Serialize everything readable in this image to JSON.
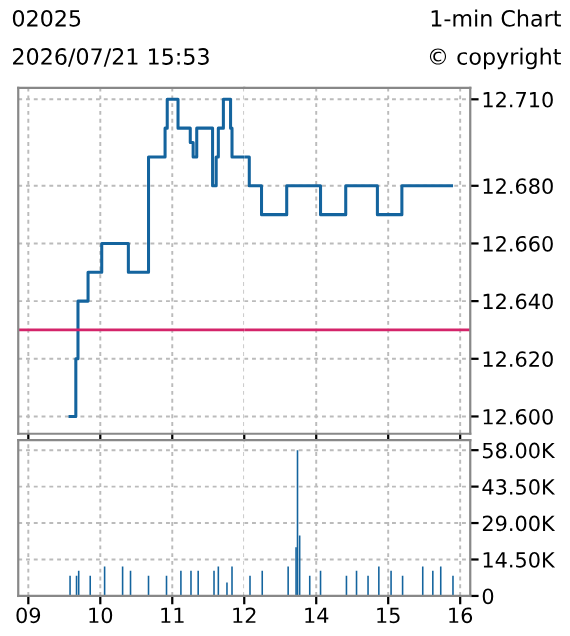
{
  "chart_data": [
    {
      "type": "step",
      "title": "02025",
      "subtitle": "2026/07/21 15:53",
      "annotations": [
        "1-min Chart",
        "© copyright"
      ],
      "x": [
        9.58,
        9.66,
        9.69,
        9.83,
        10.02,
        10.39,
        10.67,
        10.9,
        10.93,
        11.08,
        11.25,
        11.29,
        11.34,
        11.56,
        11.61,
        11.64,
        11.71,
        11.81,
        11.83,
        12.0
      ],
      "series": [
        {
          "color": "#14649e",
          "values": [
            12.6,
            12.62,
            12.64,
            12.65,
            12.66,
            12.65,
            12.69,
            12.7,
            12.71,
            12.7,
            12.695,
            12.69,
            12.7,
            12.68,
            12.69,
            12.7,
            12.71,
            12.7,
            12.69,
            12.69
          ]
        }
      ],
      "ref_lines": [
        {
          "axis": "y",
          "value": 12.63,
          "color": "#d4246a"
        }
      ],
      "xlim": [
        8.86,
        12
      ],
      "xticks": [
        9,
        10,
        11,
        12
      ],
      "ylim": [
        12.594,
        12.714
      ],
      "yticks": [
        12.6,
        12.62,
        12.64,
        12.66,
        12.68,
        12.71
      ],
      "grid": true,
      "tick_labels": false
    },
    {
      "type": "step",
      "x": [
        13.0,
        13.07,
        13.24,
        13.59,
        14.06,
        14.41,
        14.85,
        15.19,
        15.88
      ],
      "series": [
        {
          "color": "#14649e",
          "values": [
            12.69,
            12.68,
            12.67,
            12.68,
            12.67,
            12.68,
            12.67,
            12.68,
            12.68
          ]
        }
      ],
      "ref_lines": [
        {
          "axis": "y",
          "value": 12.63,
          "color": "#d4246a"
        }
      ],
      "xlim": [
        13,
        16.14
      ],
      "xticks": [
        14,
        15,
        16
      ],
      "ylim": [
        12.594,
        12.714
      ],
      "yticks": [
        {
          "value": 12.6,
          "label": "12.600"
        },
        {
          "value": 12.62,
          "label": "12.620"
        },
        {
          "value": 12.64,
          "label": "12.640"
        },
        {
          "value": 12.66,
          "label": "12.660"
        },
        {
          "value": 12.68,
          "label": "12.680"
        },
        {
          "value": 12.71,
          "label": "12.710"
        }
      ],
      "grid": true,
      "tick_labels": "y"
    },
    {
      "type": "bar",
      "x": [
        9.58,
        9.67,
        9.7,
        9.86,
        10.06,
        10.31,
        10.42,
        10.67,
        10.92,
        11.12,
        11.26,
        11.36,
        11.58,
        11.64,
        11.76,
        11.83
      ],
      "series": [
        {
          "color": "#14649e",
          "values": [
            8000,
            8000,
            10000,
            8000,
            11700,
            11700,
            10000,
            8000,
            8000,
            10000,
            10000,
            10000,
            10000,
            11700,
            5300,
            11700
          ]
        }
      ],
      "xlim": [
        8.86,
        12
      ],
      "xticks": [
        {
          "value": 9,
          "label": "09"
        },
        10,
        11,
        12
      ],
      "ylim": [
        0,
        62000
      ],
      "yticks": [
        0,
        14500,
        29000,
        43500,
        58000
      ],
      "grid": true,
      "tick_labels": "x"
    },
    {
      "type": "bar",
      "x": [
        13.08,
        13.25,
        13.61,
        13.72,
        13.74,
        13.77,
        13.91,
        14.06,
        14.42,
        14.56,
        14.72,
        14.87,
        15.04,
        15.2,
        15.48,
        15.62,
        15.73,
        15.9
      ],
      "series": [
        {
          "color": "#14649e",
          "values": [
            8000,
            10000,
            11700,
            19400,
            58000,
            24000,
            8000,
            10000,
            8000,
            10000,
            8000,
            11700,
            10000,
            8000,
            11700,
            10000,
            11700,
            8000
          ]
        }
      ],
      "xlim": [
        13,
        16.14
      ],
      "xticks": [
        14,
        15,
        16
      ],
      "ylim": [
        0,
        62000
      ],
      "yticks": [
        0,
        {
          "value": 14500,
          "label": "14.50K"
        },
        {
          "value": 29000,
          "label": "29.00K"
        },
        {
          "value": 43500,
          "label": "43.50K"
        },
        {
          "value": 58000,
          "label": "58.00K"
        }
      ],
      "grid": true
    }
  ]
}
